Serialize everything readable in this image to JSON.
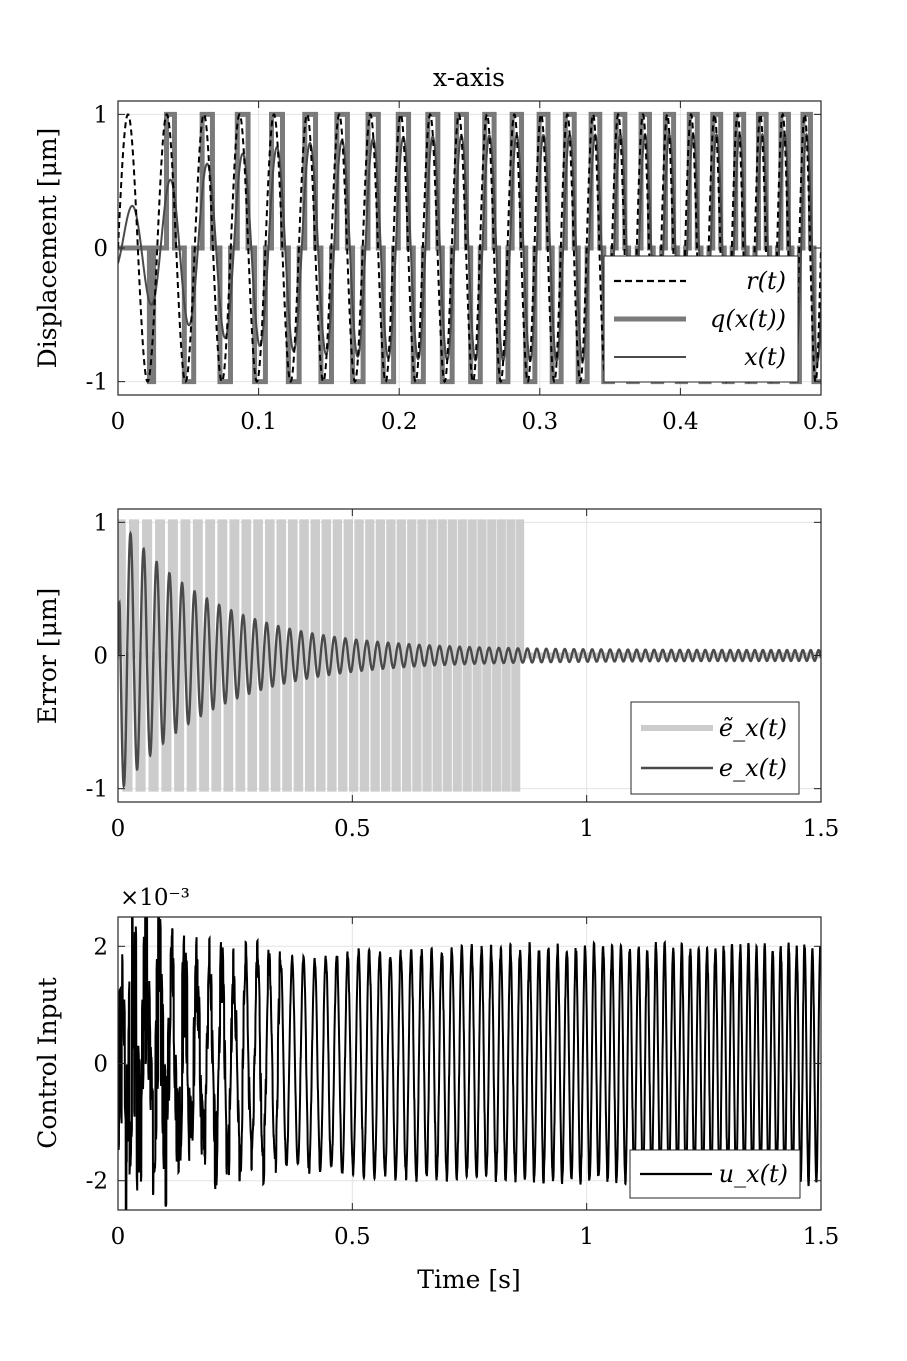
{
  "chart_data": [
    {
      "type": "line",
      "title": "x-axis",
      "xlabel": "",
      "ylabel": "Displacement [μm]",
      "xlim": [
        0,
        0.5
      ],
      "ylim": [
        -1.1,
        1.1
      ],
      "xticks": [
        0,
        0.1,
        0.2,
        0.3,
        0.4,
        0.5
      ],
      "xtick_labels": [
        "0",
        "0.1",
        "0.2",
        "0.3",
        "0.4",
        "0.5"
      ],
      "yticks": [
        -1,
        0,
        1
      ],
      "ytick_labels": [
        "-1",
        "0",
        "1"
      ],
      "grid": true,
      "legend": "bottom-right",
      "series": [
        {
          "name": "r(t)",
          "style": "dashed",
          "color": "#000000",
          "description": "chirp reference sin(2π(35t+30t²))"
        },
        {
          "name": "q(x(t))",
          "style": "thick",
          "color": "#7a7a7a",
          "description": "quantized x(t), levels -1, 0, 1"
        },
        {
          "name": "x(t)",
          "style": "solid",
          "color": "#4a4a4a",
          "description": "displacement, amplitude growing to ~0.85"
        }
      ]
    },
    {
      "type": "line",
      "title": "",
      "xlabel": "",
      "ylabel": "Error [μm]",
      "xlim": [
        0,
        1.5
      ],
      "ylim": [
        -1.1,
        1.1
      ],
      "xticks": [
        0,
        0.5,
        1,
        1.5
      ],
      "xtick_labels": [
        "0",
        "0.5",
        "1",
        "1.5"
      ],
      "yticks": [
        -1,
        0,
        1
      ],
      "ytick_labels": [
        "-1",
        "0",
        "1"
      ],
      "grid": true,
      "legend": "bottom-right",
      "series": [
        {
          "name": "ẽ_x(t)",
          "style": "thick",
          "color": "#cccccc",
          "description": "quantized error, ±1 pulses until t≈0.86"
        },
        {
          "name": "e_x(t)",
          "style": "solid",
          "color": "#4a4a4a",
          "description": "decaying oscillation, peak 0.85 at t≈0.01, min -1 at t≈0.025"
        }
      ]
    },
    {
      "type": "line",
      "title": "",
      "xlabel": "Time [s]",
      "ylabel": "Control Input",
      "y_multiplier": "×10⁻³",
      "xlim": [
        0,
        1.5
      ],
      "ylim": [
        -2.5,
        2.5
      ],
      "xticks": [
        0,
        0.5,
        1,
        1.5
      ],
      "xtick_labels": [
        "0",
        "0.5",
        "1",
        "1.5"
      ],
      "yticks": [
        -2,
        0,
        2
      ],
      "ytick_labels": [
        "-2",
        "0",
        "2"
      ],
      "grid": true,
      "legend": "bottom-right",
      "series": [
        {
          "name": "u_x(t)",
          "style": "solid",
          "color": "#000000",
          "description": "control input oscillating at ~±2e-3, noisy spikes early"
        }
      ]
    }
  ]
}
